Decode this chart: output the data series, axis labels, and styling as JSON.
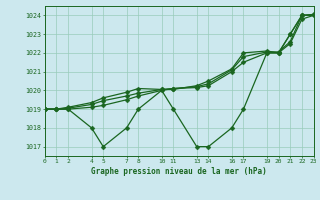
{
  "xlabel": "Graphe pression niveau de la mer (hPa)",
  "background_color": "#cce8ee",
  "grid_color": "#99ccbb",
  "line_color": "#1a6620",
  "ylim": [
    1016.5,
    1024.5
  ],
  "xlim": [
    0,
    23
  ],
  "yticks": [
    1017,
    1018,
    1019,
    1020,
    1021,
    1022,
    1023,
    1024
  ],
  "xticks": [
    0,
    1,
    2,
    4,
    5,
    7,
    8,
    10,
    11,
    13,
    14,
    16,
    17,
    19,
    20,
    21,
    22,
    23
  ],
  "xtick_labels": [
    "0",
    "1",
    "2",
    "4",
    "5",
    "7",
    "8",
    "10",
    "11",
    "13",
    "14",
    "16",
    "17",
    "19",
    "20",
    "21",
    "22",
    "23"
  ],
  "series1_x": [
    0,
    1,
    2,
    4,
    5,
    7,
    8,
    10,
    11,
    13,
    14,
    16,
    17,
    19,
    20,
    21,
    22,
    23
  ],
  "series1_y": [
    1019,
    1019,
    1019,
    1018,
    1017,
    1018,
    1019,
    1020,
    1019,
    1017,
    1017,
    1018,
    1019,
    1022,
    1022,
    1023,
    1024,
    1024
  ],
  "series2_x": [
    0,
    1,
    2,
    4,
    5,
    7,
    8,
    10,
    11,
    13,
    14,
    16,
    17,
    19,
    20,
    21,
    22,
    23
  ],
  "series2_y": [
    1019,
    1019,
    1019,
    1019.1,
    1019.2,
    1019.5,
    1019.7,
    1020.0,
    1020.1,
    1020.15,
    1020.25,
    1021.0,
    1021.5,
    1022.0,
    1022.0,
    1022.5,
    1023.8,
    1024.0
  ],
  "series3_x": [
    0,
    1,
    2,
    4,
    5,
    7,
    8,
    10,
    11,
    13,
    14,
    16,
    17,
    19,
    20,
    21,
    22,
    23
  ],
  "series3_y": [
    1019,
    1019,
    1019.05,
    1019.25,
    1019.45,
    1019.7,
    1019.85,
    1020.05,
    1020.1,
    1020.2,
    1020.35,
    1021.1,
    1021.8,
    1022.05,
    1022.05,
    1022.6,
    1024.0,
    1024.05
  ],
  "series4_x": [
    0,
    1,
    2,
    4,
    5,
    7,
    8,
    10,
    11,
    13,
    14,
    16,
    17,
    19,
    20,
    21,
    22,
    23
  ],
  "series4_y": [
    1019,
    1019,
    1019.1,
    1019.35,
    1019.6,
    1019.9,
    1020.1,
    1020.05,
    1020.05,
    1020.25,
    1020.5,
    1021.15,
    1022.0,
    1022.1,
    1022.0,
    1023.0,
    1024.0,
    1024.05
  ],
  "markersize": 2.5,
  "linewidth": 0.9
}
